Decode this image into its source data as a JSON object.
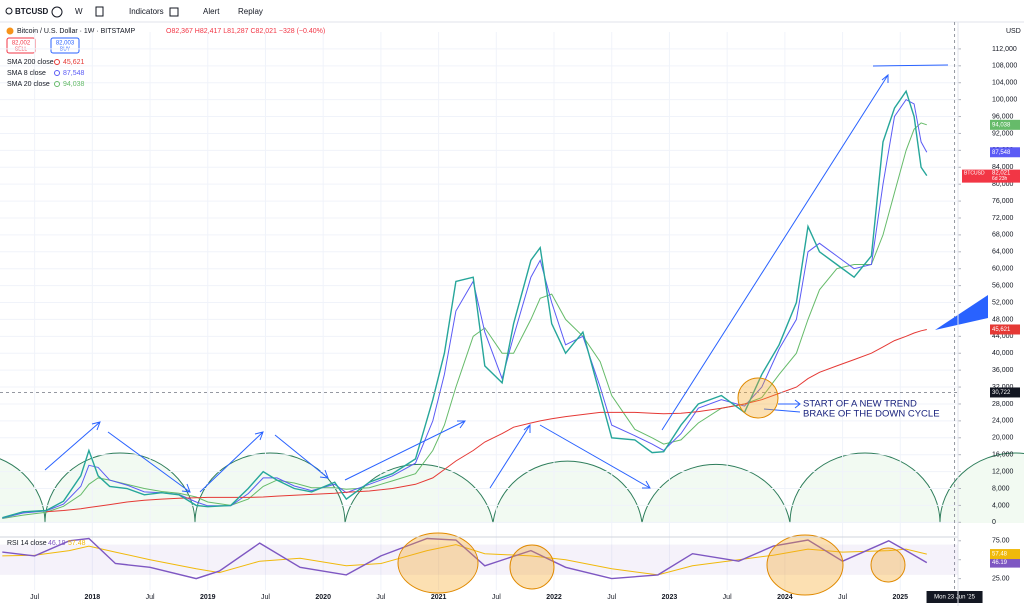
{
  "toolbar": {
    "symbol": "BTCUSD",
    "interval": "W",
    "buttons": [
      "Indicators",
      "Alert",
      "Replay"
    ]
  },
  "legend": {
    "title": "Bitcoin / U.S. Dollar · 1W · BITSTAMP",
    "ohlc": "O82,367 H82,417 L81,287 C82,021 −328 (−0.40%)",
    "sell_price": "82,002",
    "sell": "SELL",
    "buy_price": "82,003",
    "buy": "BUY"
  },
  "currency": "USD",
  "chart_data": [
    {
      "type": "line",
      "x": [
        2017.22,
        2017.4,
        2017.6,
        2017.75,
        2017.9,
        2017.97,
        2018.05,
        2018.15,
        2018.3,
        2018.45,
        2018.6,
        2018.75,
        2018.9,
        2019.0,
        2019.2,
        2019.35,
        2019.48,
        2019.6,
        2019.75,
        2019.9,
        2020.1,
        2020.2,
        2020.4,
        2020.6,
        2020.8,
        2020.95,
        2021.05,
        2021.15,
        2021.3,
        2021.4,
        2021.55,
        2021.65,
        2021.8,
        2021.88,
        2021.98,
        2022.1,
        2022.25,
        2022.4,
        2022.5,
        2022.7,
        2022.85,
        2022.95,
        2023.1,
        2023.25,
        2023.45,
        2023.65,
        2023.8,
        2023.95,
        2024.1,
        2024.2,
        2024.3,
        2024.45,
        2024.6,
        2024.75,
        2024.85,
        2024.95,
        2025.05,
        2025.12,
        2025.18,
        2025.23
      ],
      "series": [
        {
          "name": "BTCUSD",
          "color": "#26a69a",
          "tag_color": "#f23645",
          "tag_label": "82,021",
          "countdown": "6d 23h",
          "values": [
            1100,
            2500,
            2800,
            5000,
            11000,
            17000,
            11000,
            8500,
            8000,
            6500,
            7000,
            6500,
            4000,
            3700,
            4000,
            8000,
            12000,
            10000,
            8000,
            7200,
            9500,
            5500,
            9500,
            11500,
            15000,
            29000,
            40000,
            57000,
            58000,
            37000,
            33000,
            47000,
            62000,
            65000,
            47000,
            40000,
            45000,
            30000,
            20000,
            19500,
            16500,
            16700,
            23000,
            28000,
            30000,
            26000,
            35000,
            42000,
            52000,
            70000,
            64000,
            61000,
            58000,
            63000,
            90000,
            98000,
            102000,
            96000,
            84000,
            82021
          ]
        },
        {
          "name": "SMA 200 close",
          "color": "#e53935",
          "legend_value": "45,621",
          "values": [
            null,
            null,
            2500,
            2800,
            3200,
            3500,
            3800,
            4200,
            4800,
            5200,
            5500,
            5700,
            5800,
            5900,
            5900,
            5900,
            6000,
            6200,
            6400,
            6600,
            6900,
            7100,
            7400,
            8000,
            9000,
            10500,
            12500,
            14500,
            17000,
            19000,
            21000,
            22500,
            23500,
            24000,
            24500,
            25000,
            25500,
            26000,
            26000,
            26000,
            25800,
            25700,
            25800,
            26200,
            27000,
            28000,
            29000,
            30500,
            32000,
            34000,
            35500,
            37000,
            38500,
            40000,
            41500,
            43000,
            44000,
            44800,
            45300,
            45621
          ]
        },
        {
          "name": "SMA 8 close",
          "color": "#5b5bf5",
          "legend_value": "87,548",
          "values": [
            1000,
            2200,
            2700,
            4300,
            8500,
            13500,
            13000,
            10000,
            8800,
            7200,
            7000,
            6600,
            4800,
            3900,
            3900,
            6800,
            10500,
            10500,
            8600,
            7500,
            9000,
            7000,
            9000,
            11000,
            14000,
            24000,
            35000,
            50000,
            57000,
            45000,
            34000,
            44000,
            58000,
            62000,
            52000,
            42000,
            44000,
            32000,
            23000,
            20500,
            18500,
            17000,
            21000,
            27000,
            29000,
            27500,
            32000,
            41000,
            48000,
            64000,
            66000,
            63000,
            60000,
            61000,
            80000,
            96000,
            100000,
            99000,
            90000,
            87548
          ]
        },
        {
          "name": "SMA 20 close",
          "color": "#66bb6a",
          "legend_value": "94,038",
          "values": [
            900,
            1700,
            2400,
            3800,
            6500,
            9000,
            10500,
            10000,
            9000,
            8000,
            7300,
            6900,
            6000,
            4800,
            4000,
            5500,
            8500,
            10000,
            9300,
            8200,
            8200,
            7800,
            8200,
            9800,
            11500,
            17000,
            23000,
            32000,
            44000,
            46000,
            40000,
            40000,
            48000,
            53000,
            54000,
            48000,
            44000,
            38000,
            30000,
            22000,
            20000,
            18500,
            19500,
            23500,
            27000,
            28000,
            29500,
            35000,
            40000,
            48000,
            55000,
            60000,
            61000,
            61000,
            68000,
            78000,
            88000,
            93000,
            94500,
            94038
          ]
        }
      ],
      "xlim": [
        2017.2,
        2025.5
      ],
      "xticks": [
        {
          "value": 2017.5,
          "label": "Jul"
        },
        2018,
        {
          "value": 2018.5,
          "label": "Jul"
        },
        2019,
        {
          "value": 2019.5,
          "label": "Jul"
        },
        2020,
        {
          "value": 2020.5,
          "label": "Jul"
        },
        2021,
        {
          "value": 2021.5,
          "label": "Jul"
        },
        2022,
        {
          "value": 2022.5,
          "label": "Jul"
        },
        2023,
        {
          "value": 2023.5,
          "label": "Jul"
        },
        2024,
        {
          "value": 2024.5,
          "label": "Jul"
        },
        2025
      ],
      "ylim": [
        -3000,
        116000
      ],
      "yticks": [
        0,
        {
          "value": 4000,
          "label": "4,000"
        },
        {
          "value": 8000,
          "label": "8,000"
        },
        {
          "value": 12000,
          "label": "12,000"
        },
        {
          "value": 16000,
          "label": "16,000"
        },
        {
          "value": 20000,
          "label": "20,000"
        },
        {
          "value": 24000,
          "label": "24,000"
        },
        {
          "value": 28000,
          "label": "28,000"
        },
        {
          "value": 32000,
          "label": "32,000"
        },
        {
          "value": 36000,
          "label": "36,000"
        },
        {
          "value": 40000,
          "label": "40,000"
        },
        {
          "value": 44000,
          "label": "44,000"
        },
        {
          "value": 48000,
          "label": "48,000"
        },
        {
          "value": 52000,
          "label": "52,000"
        },
        {
          "value": 56000,
          "label": "56,000"
        },
        {
          "value": 60000,
          "label": "60,000"
        },
        {
          "value": 64000,
          "label": "64,000"
        },
        {
          "value": 68000,
          "label": "68,000"
        },
        {
          "value": 72000,
          "label": "72,000"
        },
        {
          "value": 76000,
          "label": "76,000"
        },
        {
          "value": 80000,
          "label": "80,000"
        },
        {
          "value": 84000,
          "label": "84,000"
        },
        {
          "value": 88000,
          "label": "88,000"
        },
        {
          "value": 92000,
          "label": "92,000"
        },
        {
          "value": 96000,
          "label": "96,000"
        },
        {
          "value": 100000,
          "label": "100,000"
        },
        {
          "value": 104000,
          "label": "104,000"
        },
        {
          "value": 108000,
          "label": "108,000"
        },
        {
          "value": 112000,
          "label": "112,000"
        }
      ],
      "grid": true,
      "crosshair": {
        "value": 30722,
        "label": "30,722",
        "x": 2025.47,
        "date_label": "Mon 23 Jun '25"
      },
      "annotations": [
        "START OF A NEW TREND",
        "BRAKE OF THE DOWN CYCLE"
      ]
    },
    {
      "type": "line",
      "title": "RSI 14 close",
      "x": [
        2017.22,
        2017.5,
        2017.8,
        2017.97,
        2018.2,
        2018.5,
        2018.9,
        2019.1,
        2019.45,
        2019.8,
        2020.2,
        2020.5,
        2020.9,
        2021.15,
        2021.4,
        2021.8,
        2022.1,
        2022.5,
        2022.9,
        2023.2,
        2023.6,
        2023.9,
        2024.2,
        2024.5,
        2024.9,
        2025.05,
        2025.23
      ],
      "series": [
        {
          "name": "RSI 14 close",
          "color": "#7e57c2",
          "legend_value": "46.19",
          "values": [
            60,
            55,
            75,
            78,
            45,
            40,
            25,
            35,
            72,
            40,
            30,
            55,
            78,
            76,
            42,
            62,
            40,
            25,
            30,
            58,
            48,
            68,
            76,
            48,
            75,
            62,
            46.19
          ]
        },
        {
          "color": "#f0b90b",
          "legend_value": "57.48",
          "values": [
            55,
            56,
            62,
            68,
            60,
            50,
            38,
            33,
            48,
            52,
            42,
            45,
            62,
            70,
            58,
            55,
            50,
            38,
            30,
            42,
            50,
            56,
            64,
            60,
            62,
            64,
            57.48
          ]
        }
      ],
      "xlim": [
        2017.2,
        2025.5
      ],
      "ylim": [
        10,
        80
      ],
      "yticks": [
        {
          "value": 25,
          "label": "25.00"
        },
        {
          "value": 50,
          "label": "50.00"
        },
        {
          "value": 75,
          "label": "75.00"
        }
      ],
      "band": [
        30,
        70
      ]
    }
  ]
}
